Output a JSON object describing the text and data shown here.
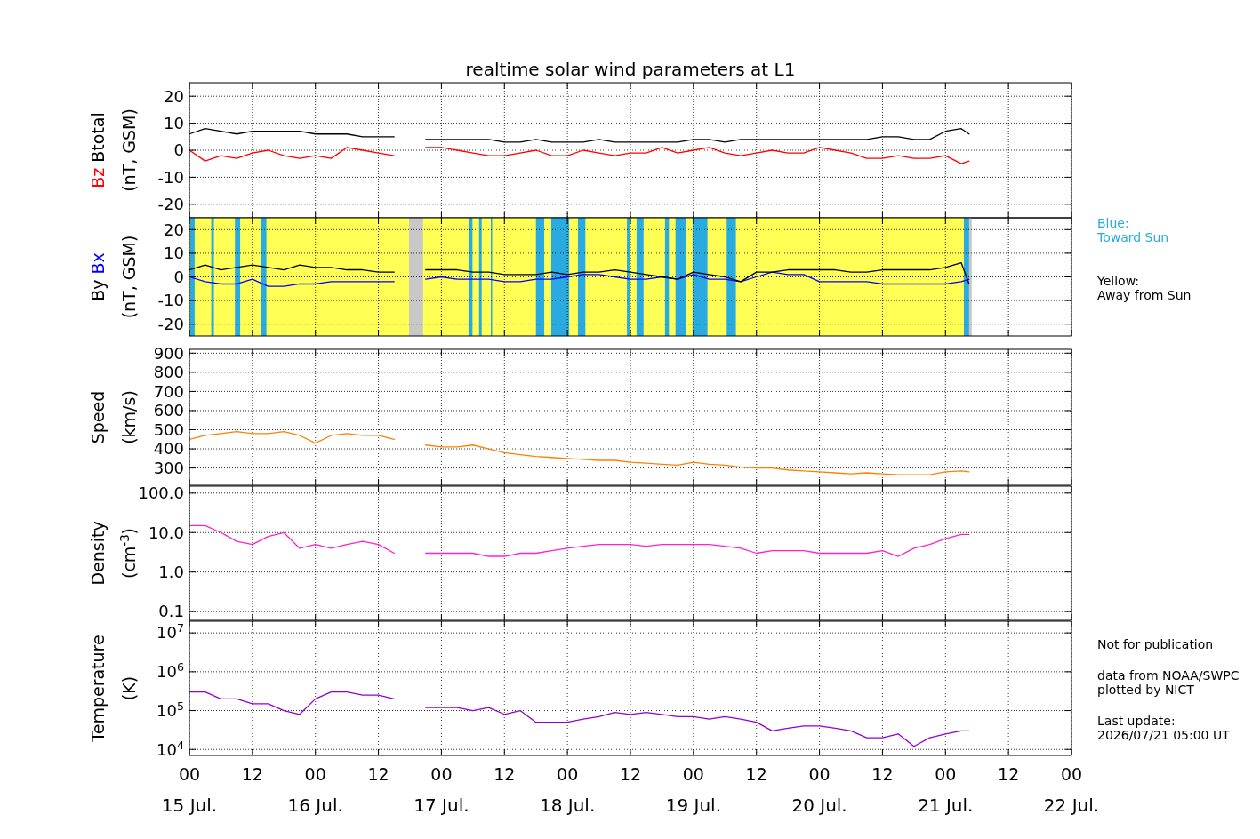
{
  "chart_data": [
    {
      "type": "line",
      "title": "realtime solar wind parameters at L1",
      "ylabel": "(nT, GSM)",
      "x": [
        "2026-07-15T00:00",
        "2026-07-15T03:00",
        "2026-07-15T06:00",
        "2026-07-15T09:00",
        "2026-07-15T12:00",
        "2026-07-15T15:00",
        "2026-07-15T18:00",
        "2026-07-15T21:00",
        "2026-07-16T00:00",
        "2026-07-16T03:00",
        "2026-07-16T06:00",
        "2026-07-16T09:00",
        "2026-07-16T12:00",
        "2026-07-16T15:00",
        "2026-07-16T18:00",
        "2026-07-16T21:00",
        "2026-07-17T00:00",
        "2026-07-17T03:00",
        "2026-07-17T06:00",
        "2026-07-17T09:00",
        "2026-07-17T12:00",
        "2026-07-17T15:00",
        "2026-07-17T18:00",
        "2026-07-17T21:00",
        "2026-07-18T00:00",
        "2026-07-18T03:00",
        "2026-07-18T06:00",
        "2026-07-18T09:00",
        "2026-07-18T12:00",
        "2026-07-18T15:00",
        "2026-07-18T18:00",
        "2026-07-18T21:00",
        "2026-07-19T00:00",
        "2026-07-19T03:00",
        "2026-07-19T06:00",
        "2026-07-19T09:00",
        "2026-07-19T12:00",
        "2026-07-19T15:00",
        "2026-07-19T18:00",
        "2026-07-19T21:00",
        "2026-07-20T00:00",
        "2026-07-20T03:00",
        "2026-07-20T06:00",
        "2026-07-20T09:00",
        "2026-07-20T12:00",
        "2026-07-20T15:00",
        "2026-07-20T18:00",
        "2026-07-20T21:00",
        "2026-07-21T00:00",
        "2026-07-21T03:00",
        "2026-07-21T04:30"
      ],
      "xlim": [
        "2026-07-15T00:00",
        "2026-07-22T00:00"
      ],
      "xticks": [
        {
          "value": "2026-07-15T00:00",
          "label": null
        },
        {
          "value": "2026-07-15T12:00",
          "label": null
        },
        {
          "value": "2026-07-16T00:00",
          "label": null
        },
        {
          "value": "2026-07-16T12:00",
          "label": null
        },
        {
          "value": "2026-07-17T00:00",
          "label": null
        },
        {
          "value": "2026-07-17T12:00",
          "label": null
        },
        {
          "value": "2026-07-18T00:00",
          "label": null
        },
        {
          "value": "2026-07-18T12:00",
          "label": null
        },
        {
          "value": "2026-07-19T00:00",
          "label": null
        },
        {
          "value": "2026-07-19T12:00",
          "label": null
        },
        {
          "value": "2026-07-20T00:00",
          "label": null
        },
        {
          "value": "2026-07-20T12:00",
          "label": null
        },
        {
          "value": "2026-07-21T00:00",
          "label": null
        },
        {
          "value": "2026-07-21T12:00",
          "label": null
        },
        {
          "value": "2026-07-22T00:00",
          "label": null
        }
      ],
      "ylim": [
        -25,
        25
      ],
      "yticks": [
        -20,
        -10,
        0,
        10,
        20
      ],
      "grid": true,
      "tick_labels": "y",
      "series": [
        {
          "name": "Bz",
          "color": "#ff0000",
          "values": [
            0,
            -4,
            -2,
            -3,
            -1,
            0,
            -2,
            -3,
            -2,
            -3,
            1,
            0,
            -1,
            -2,
            null,
            1,
            1,
            0,
            -1,
            -2,
            -2,
            -1,
            0,
            -2,
            -2,
            0,
            -1,
            -2,
            -1,
            -1,
            1,
            -1,
            0,
            1,
            -1,
            -2,
            -1,
            0,
            -1,
            -1,
            1,
            0,
            -1,
            -3,
            -3,
            -2,
            -3,
            -3,
            -2,
            -5,
            -4
          ]
        },
        {
          "name": "Btotal",
          "color": "#000000",
          "values": [
            6,
            8,
            7,
            6,
            7,
            7,
            7,
            7,
            6,
            6,
            6,
            5,
            5,
            5,
            null,
            4,
            4,
            4,
            4,
            4,
            3,
            3,
            4,
            3,
            3,
            3,
            4,
            3,
            3,
            3,
            3,
            3,
            4,
            4,
            3,
            4,
            4,
            4,
            4,
            4,
            4,
            4,
            4,
            4,
            5,
            5,
            4,
            4,
            7,
            8,
            6
          ]
        }
      ]
    },
    {
      "type": "line",
      "ylabel": "(nT, GSM)",
      "x": [
        "2026-07-15T00:00",
        "2026-07-15T03:00",
        "2026-07-15T06:00",
        "2026-07-15T09:00",
        "2026-07-15T12:00",
        "2026-07-15T15:00",
        "2026-07-15T18:00",
        "2026-07-15T21:00",
        "2026-07-16T00:00",
        "2026-07-16T03:00",
        "2026-07-16T06:00",
        "2026-07-16T09:00",
        "2026-07-16T12:00",
        "2026-07-16T15:00",
        "2026-07-16T18:00",
        "2026-07-16T21:00",
        "2026-07-17T00:00",
        "2026-07-17T03:00",
        "2026-07-17T06:00",
        "2026-07-17T09:00",
        "2026-07-17T12:00",
        "2026-07-17T15:00",
        "2026-07-17T18:00",
        "2026-07-17T21:00",
        "2026-07-18T00:00",
        "2026-07-18T03:00",
        "2026-07-18T06:00",
        "2026-07-18T09:00",
        "2026-07-18T12:00",
        "2026-07-18T15:00",
        "2026-07-18T18:00",
        "2026-07-18T21:00",
        "2026-07-19T00:00",
        "2026-07-19T03:00",
        "2026-07-19T06:00",
        "2026-07-19T09:00",
        "2026-07-19T12:00",
        "2026-07-19T15:00",
        "2026-07-19T18:00",
        "2026-07-19T21:00",
        "2026-07-20T00:00",
        "2026-07-20T03:00",
        "2026-07-20T06:00",
        "2026-07-20T09:00",
        "2026-07-20T12:00",
        "2026-07-20T15:00",
        "2026-07-20T18:00",
        "2026-07-20T21:00",
        "2026-07-21T00:00",
        "2026-07-21T03:00",
        "2026-07-21T04:30"
      ],
      "xlim": [
        "2026-07-15T00:00",
        "2026-07-22T00:00"
      ],
      "xticks": [
        {
          "value": "2026-07-15T00:00",
          "label": null
        },
        {
          "value": "2026-07-15T12:00",
          "label": null
        },
        {
          "value": "2026-07-16T00:00",
          "label": null
        },
        {
          "value": "2026-07-16T12:00",
          "label": null
        },
        {
          "value": "2026-07-17T00:00",
          "label": null
        },
        {
          "value": "2026-07-17T12:00",
          "label": null
        },
        {
          "value": "2026-07-18T00:00",
          "label": null
        },
        {
          "value": "2026-07-18T12:00",
          "label": null
        },
        {
          "value": "2026-07-19T00:00",
          "label": null
        },
        {
          "value": "2026-07-19T12:00",
          "label": null
        },
        {
          "value": "2026-07-20T00:00",
          "label": null
        },
        {
          "value": "2026-07-20T12:00",
          "label": null
        },
        {
          "value": "2026-07-21T00:00",
          "label": null
        },
        {
          "value": "2026-07-21T12:00",
          "label": null
        },
        {
          "value": "2026-07-22T00:00",
          "label": null
        }
      ],
      "ylim": [
        -25,
        25
      ],
      "yticks": [
        -20,
        -10,
        0,
        10,
        20
      ],
      "grid": true,
      "tick_labels": "y",
      "bands": [
        {
          "axis": "x",
          "from": "2026-07-15T00:00",
          "to": "2026-07-21T04:30",
          "color": "#ffff55"
        },
        {
          "axis": "x",
          "from": "2026-07-16T17:50",
          "to": "2026-07-16T20:30",
          "color": "#c8c8c8"
        },
        {
          "axis": "x",
          "from": "2026-07-21T04:30",
          "to": "2026-07-21T05:00",
          "color": "#c8c8c8"
        },
        {
          "axis": "x",
          "from": "2026-07-15T00:10",
          "to": "2026-07-15T01:00",
          "color": "#29abe2",
          "label": "Blue:\nToward Sun"
        },
        {
          "axis": "x",
          "from": "2026-07-15T04:10",
          "to": "2026-07-15T04:40",
          "color": "#29abe2"
        },
        {
          "axis": "x",
          "from": "2026-07-15T08:40",
          "to": "2026-07-15T09:40",
          "color": "#29abe2"
        },
        {
          "axis": "x",
          "from": "2026-07-15T13:40",
          "to": "2026-07-15T14:40",
          "color": "#29abe2"
        },
        {
          "axis": "x",
          "from": "2026-07-17T05:10",
          "to": "2026-07-17T05:55",
          "color": "#29abe2"
        },
        {
          "axis": "x",
          "from": "2026-07-17T07:10",
          "to": "2026-07-17T07:40",
          "color": "#29abe2"
        },
        {
          "axis": "x",
          "from": "2026-07-17T09:25",
          "to": "2026-07-17T09:40",
          "color": "#29abe2"
        },
        {
          "axis": "x",
          "from": "2026-07-17T18:00",
          "to": "2026-07-17T19:35",
          "color": "#29abe2"
        },
        {
          "axis": "x",
          "from": "2026-07-17T20:55",
          "to": "2026-07-18T00:20",
          "color": "#29abe2"
        },
        {
          "axis": "x",
          "from": "2026-07-18T02:00",
          "to": "2026-07-18T03:25",
          "color": "#29abe2"
        },
        {
          "axis": "x",
          "from": "2026-07-18T11:20",
          "to": "2026-07-18T11:50",
          "color": "#29abe2"
        },
        {
          "axis": "x",
          "from": "2026-07-18T13:10",
          "to": "2026-07-18T14:30",
          "color": "#29abe2"
        },
        {
          "axis": "x",
          "from": "2026-07-18T18:35",
          "to": "2026-07-18T19:20",
          "color": "#29abe2"
        },
        {
          "axis": "x",
          "from": "2026-07-18T20:35",
          "to": "2026-07-18T22:40",
          "color": "#29abe2"
        },
        {
          "axis": "x",
          "from": "2026-07-18T23:50",
          "to": "2026-07-19T02:40",
          "color": "#29abe2"
        },
        {
          "axis": "x",
          "from": "2026-07-19T06:20",
          "to": "2026-07-19T08:05",
          "color": "#29abe2"
        },
        {
          "axis": "x",
          "from": "2026-07-21T03:30",
          "to": "2026-07-21T04:30",
          "color": "#29abe2"
        }
      ],
      "annotations": [
        "Yellow:\nAway from Sun"
      ],
      "series": [
        {
          "name": "By",
          "color": "#000000",
          "values": [
            3,
            5,
            3,
            4,
            5,
            4,
            3,
            5,
            4,
            4,
            3,
            3,
            2,
            2,
            null,
            3,
            3,
            3,
            2,
            2,
            1,
            1,
            1,
            2,
            1,
            2,
            2,
            3,
            2,
            1,
            0,
            -1,
            2,
            1,
            0,
            -2,
            2,
            2,
            3,
            3,
            3,
            3,
            2,
            2,
            3,
            3,
            3,
            3,
            4,
            6,
            -3
          ]
        },
        {
          "name": "Bx",
          "color": "#0000ff",
          "values": [
            0,
            -2,
            -3,
            -3,
            -1,
            -4,
            -4,
            -3,
            -3,
            -2,
            -2,
            -2,
            -2,
            -2,
            null,
            -1,
            0,
            -1,
            -1,
            -1,
            -2,
            -2,
            -1,
            -1,
            0,
            1,
            1,
            0,
            -1,
            -1,
            0,
            -1,
            1,
            -1,
            -1,
            -2,
            0,
            2,
            1,
            1,
            -2,
            -2,
            -2,
            -2,
            -3,
            -3,
            -3,
            -3,
            -3,
            -2,
            -1
          ]
        }
      ]
    },
    {
      "type": "line",
      "ylabel": "Speed\n(km/s)",
      "x": [
        "2026-07-15T00:00",
        "2026-07-15T03:00",
        "2026-07-15T06:00",
        "2026-07-15T09:00",
        "2026-07-15T12:00",
        "2026-07-15T15:00",
        "2026-07-15T18:00",
        "2026-07-15T21:00",
        "2026-07-16T00:00",
        "2026-07-16T03:00",
        "2026-07-16T06:00",
        "2026-07-16T09:00",
        "2026-07-16T12:00",
        "2026-07-16T15:00",
        "2026-07-16T18:00",
        "2026-07-16T21:00",
        "2026-07-17T00:00",
        "2026-07-17T03:00",
        "2026-07-17T06:00",
        "2026-07-17T09:00",
        "2026-07-17T12:00",
        "2026-07-17T15:00",
        "2026-07-17T18:00",
        "2026-07-17T21:00",
        "2026-07-18T00:00",
        "2026-07-18T03:00",
        "2026-07-18T06:00",
        "2026-07-18T09:00",
        "2026-07-18T12:00",
        "2026-07-18T15:00",
        "2026-07-18T18:00",
        "2026-07-18T21:00",
        "2026-07-19T00:00",
        "2026-07-19T03:00",
        "2026-07-19T06:00",
        "2026-07-19T09:00",
        "2026-07-19T12:00",
        "2026-07-19T15:00",
        "2026-07-19T18:00",
        "2026-07-19T21:00",
        "2026-07-20T00:00",
        "2026-07-20T03:00",
        "2026-07-20T06:00",
        "2026-07-20T09:00",
        "2026-07-20T12:00",
        "2026-07-20T15:00",
        "2026-07-20T18:00",
        "2026-07-20T21:00",
        "2026-07-21T00:00",
        "2026-07-21T03:00",
        "2026-07-21T04:30"
      ],
      "xlim": [
        "2026-07-15T00:00",
        "2026-07-22T00:00"
      ],
      "xticks": [
        {
          "value": "2026-07-15T00:00",
          "label": null
        },
        {
          "value": "2026-07-15T12:00",
          "label": null
        },
        {
          "value": "2026-07-16T00:00",
          "label": null
        },
        {
          "value": "2026-07-16T12:00",
          "label": null
        },
        {
          "value": "2026-07-17T00:00",
          "label": null
        },
        {
          "value": "2026-07-17T12:00",
          "label": null
        },
        {
          "value": "2026-07-18T00:00",
          "label": null
        },
        {
          "value": "2026-07-18T12:00",
          "label": null
        },
        {
          "value": "2026-07-19T00:00",
          "label": null
        },
        {
          "value": "2026-07-19T12:00",
          "label": null
        },
        {
          "value": "2026-07-20T00:00",
          "label": null
        },
        {
          "value": "2026-07-20T12:00",
          "label": null
        },
        {
          "value": "2026-07-21T00:00",
          "label": null
        },
        {
          "value": "2026-07-21T12:00",
          "label": null
        },
        {
          "value": "2026-07-22T00:00",
          "label": null
        }
      ],
      "ylim": [
        210,
        920
      ],
      "yticks": [
        300,
        400,
        500,
        600,
        700,
        800,
        900
      ],
      "grid": true,
      "tick_labels": "y",
      "series": [
        {
          "color": "#ff8000",
          "values": [
            450,
            470,
            480,
            490,
            480,
            480,
            490,
            470,
            430,
            470,
            480,
            470,
            470,
            450,
            null,
            420,
            410,
            410,
            420,
            400,
            380,
            370,
            360,
            355,
            350,
            345,
            340,
            340,
            330,
            325,
            320,
            315,
            330,
            320,
            315,
            305,
            300,
            300,
            290,
            285,
            280,
            275,
            270,
            275,
            270,
            265,
            265,
            265,
            280,
            285,
            280
          ]
        }
      ]
    },
    {
      "type": "line",
      "ylabel": "Density\n(cm$^{-3}$)",
      "log": "y",
      "x": [
        "2026-07-15T00:00",
        "2026-07-15T03:00",
        "2026-07-15T06:00",
        "2026-07-15T09:00",
        "2026-07-15T12:00",
        "2026-07-15T15:00",
        "2026-07-15T18:00",
        "2026-07-15T21:00",
        "2026-07-16T00:00",
        "2026-07-16T03:00",
        "2026-07-16T06:00",
        "2026-07-16T09:00",
        "2026-07-16T12:00",
        "2026-07-16T15:00",
        "2026-07-16T18:00",
        "2026-07-16T21:00",
        "2026-07-17T00:00",
        "2026-07-17T03:00",
        "2026-07-17T06:00",
        "2026-07-17T09:00",
        "2026-07-17T12:00",
        "2026-07-17T15:00",
        "2026-07-17T18:00",
        "2026-07-17T21:00",
        "2026-07-18T00:00",
        "2026-07-18T03:00",
        "2026-07-18T06:00",
        "2026-07-18T09:00",
        "2026-07-18T12:00",
        "2026-07-18T15:00",
        "2026-07-18T18:00",
        "2026-07-18T21:00",
        "2026-07-19T00:00",
        "2026-07-19T03:00",
        "2026-07-19T06:00",
        "2026-07-19T09:00",
        "2026-07-19T12:00",
        "2026-07-19T15:00",
        "2026-07-19T18:00",
        "2026-07-19T21:00",
        "2026-07-20T00:00",
        "2026-07-20T03:00",
        "2026-07-20T06:00",
        "2026-07-20T09:00",
        "2026-07-20T12:00",
        "2026-07-20T15:00",
        "2026-07-20T18:00",
        "2026-07-20T21:00",
        "2026-07-21T00:00",
        "2026-07-21T03:00",
        "2026-07-21T04:30"
      ],
      "xlim": [
        "2026-07-15T00:00",
        "2026-07-22T00:00"
      ],
      "xticks": [
        {
          "value": "2026-07-15T00:00",
          "label": null
        },
        {
          "value": "2026-07-15T12:00",
          "label": null
        },
        {
          "value": "2026-07-16T00:00",
          "label": null
        },
        {
          "value": "2026-07-16T12:00",
          "label": null
        },
        {
          "value": "2026-07-17T00:00",
          "label": null
        },
        {
          "value": "2026-07-17T12:00",
          "label": null
        },
        {
          "value": "2026-07-18T00:00",
          "label": null
        },
        {
          "value": "2026-07-18T12:00",
          "label": null
        },
        {
          "value": "2026-07-19T00:00",
          "label": null
        },
        {
          "value": "2026-07-19T12:00",
          "label": null
        },
        {
          "value": "2026-07-20T00:00",
          "label": null
        },
        {
          "value": "2026-07-20T12:00",
          "label": null
        },
        {
          "value": "2026-07-21T00:00",
          "label": null
        },
        {
          "value": "2026-07-21T12:00",
          "label": null
        },
        {
          "value": "2026-07-22T00:00",
          "label": null
        }
      ],
      "ylim": [
        0.06,
        150
      ],
      "yticks": [
        {
          "value": 0.1,
          "label": "0.1"
        },
        {
          "value": 1,
          "label": "1.0"
        },
        {
          "value": 10,
          "label": "10.0"
        },
        {
          "value": 100,
          "label": "100.0"
        }
      ],
      "grid": true,
      "tick_labels": "y",
      "series": [
        {
          "color": "#ff22cc",
          "values": [
            15,
            15,
            10,
            6,
            5,
            8,
            10,
            4,
            5,
            4,
            5,
            6,
            5,
            3,
            null,
            3,
            3,
            3,
            3,
            2.5,
            2.5,
            3,
            3,
            3.5,
            4,
            4.5,
            5,
            5,
            5,
            4.5,
            5,
            5,
            5,
            5,
            4.5,
            4,
            3,
            3.5,
            3.5,
            3.5,
            3,
            3,
            3,
            3,
            3.5,
            2.5,
            4,
            5,
            7,
            9,
            9
          ]
        }
      ]
    },
    {
      "type": "line",
      "ylabel": "Temperature\n(K)",
      "log": "y",
      "x": [
        "2026-07-15T00:00",
        "2026-07-15T03:00",
        "2026-07-15T06:00",
        "2026-07-15T09:00",
        "2026-07-15T12:00",
        "2026-07-15T15:00",
        "2026-07-15T18:00",
        "2026-07-15T21:00",
        "2026-07-16T00:00",
        "2026-07-16T03:00",
        "2026-07-16T06:00",
        "2026-07-16T09:00",
        "2026-07-16T12:00",
        "2026-07-16T15:00",
        "2026-07-16T18:00",
        "2026-07-16T21:00",
        "2026-07-17T00:00",
        "2026-07-17T03:00",
        "2026-07-17T06:00",
        "2026-07-17T09:00",
        "2026-07-17T12:00",
        "2026-07-17T15:00",
        "2026-07-17T18:00",
        "2026-07-17T21:00",
        "2026-07-18T00:00",
        "2026-07-18T03:00",
        "2026-07-18T06:00",
        "2026-07-18T09:00",
        "2026-07-18T12:00",
        "2026-07-18T15:00",
        "2026-07-18T18:00",
        "2026-07-18T21:00",
        "2026-07-19T00:00",
        "2026-07-19T03:00",
        "2026-07-19T06:00",
        "2026-07-19T09:00",
        "2026-07-19T12:00",
        "2026-07-19T15:00",
        "2026-07-19T18:00",
        "2026-07-19T21:00",
        "2026-07-20T00:00",
        "2026-07-20T03:00",
        "2026-07-20T06:00",
        "2026-07-20T09:00",
        "2026-07-20T12:00",
        "2026-07-20T15:00",
        "2026-07-20T18:00",
        "2026-07-20T21:00",
        "2026-07-21T00:00",
        "2026-07-21T03:00",
        "2026-07-21T04:30"
      ],
      "xlim": [
        "2026-07-15T00:00",
        "2026-07-22T00:00"
      ],
      "xticks": [
        {
          "value": "2026-07-15T00:00",
          "label": "00\n15 Jul."
        },
        {
          "value": "2026-07-15T12:00",
          "label": "12"
        },
        {
          "value": "2026-07-16T00:00",
          "label": "00\n16 Jul."
        },
        {
          "value": "2026-07-16T12:00",
          "label": "12"
        },
        {
          "value": "2026-07-17T00:00",
          "label": "00\n17 Jul."
        },
        {
          "value": "2026-07-17T12:00",
          "label": "12"
        },
        {
          "value": "2026-07-18T00:00",
          "label": "00\n18 Jul."
        },
        {
          "value": "2026-07-18T12:00",
          "label": "12"
        },
        {
          "value": "2026-07-19T00:00",
          "label": "00\n19 Jul."
        },
        {
          "value": "2026-07-19T12:00",
          "label": "12"
        },
        {
          "value": "2026-07-20T00:00",
          "label": "00\n20 Jul."
        },
        {
          "value": "2026-07-20T12:00",
          "label": "12"
        },
        {
          "value": "2026-07-21T00:00",
          "label": "00\n21 Jul."
        },
        {
          "value": "2026-07-21T12:00",
          "label": "12"
        },
        {
          "value": "2026-07-22T00:00",
          "label": "00\n22 Jul."
        }
      ],
      "ylim": [
        7000,
        20000000
      ],
      "yticks": [
        {
          "value": 10000,
          "label": "10$^{4}$"
        },
        {
          "value": 100000,
          "label": "10$^{5}$"
        },
        {
          "value": 1000000,
          "label": "10$^{6}$"
        },
        {
          "value": 10000000,
          "label": "10$^{7}$"
        }
      ],
      "grid": true,
      "annotations": [
        "Not for publication",
        "data from NOAA/SWPC\nplotted by NICT",
        "Last update:\n2026/07/21 05:00 UT"
      ],
      "series": [
        {
          "color": "#9400d3",
          "values": [
            300000,
            300000,
            200000,
            200000,
            150000,
            150000,
            100000,
            80000,
            200000,
            300000,
            300000,
            250000,
            250000,
            200000,
            null,
            120000,
            120000,
            120000,
            100000,
            120000,
            80000,
            100000,
            50000,
            50000,
            50000,
            60000,
            70000,
            90000,
            80000,
            90000,
            80000,
            70000,
            70000,
            60000,
            70000,
            60000,
            50000,
            30000,
            35000,
            40000,
            40000,
            35000,
            30000,
            20000,
            20000,
            25000,
            12000,
            20000,
            25000,
            30000,
            30000
          ]
        }
      ]
    }
  ]
}
